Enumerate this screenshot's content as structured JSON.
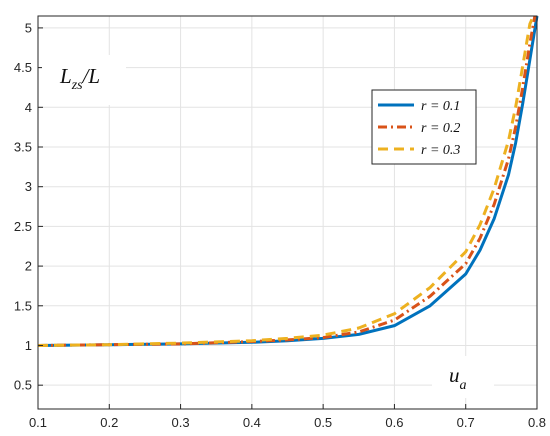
{
  "chart_data": {
    "type": "line",
    "ylabel": {
      "main": "L",
      "sub": "zs",
      "tail": "/L"
    },
    "xlabel": {
      "main": "u",
      "sub": "a"
    },
    "xlim": [
      0.1,
      0.8
    ],
    "ylim": [
      0.2,
      5.15
    ],
    "xticks": [
      "0.1",
      "0.2",
      "0.3",
      "0.4",
      "0.5",
      "0.6",
      "0.7",
      "0.8"
    ],
    "yticks": [
      "0.5",
      "1",
      "1.5",
      "2",
      "2.5",
      "3",
      "3.5",
      "4",
      "4.5",
      "5"
    ],
    "grid": true,
    "legend_position": "top-right",
    "series": [
      {
        "name": "r = 0.1",
        "color": "#0072BD",
        "style": "solid",
        "x": [
          0.1,
          0.2,
          0.3,
          0.4,
          0.45,
          0.5,
          0.55,
          0.6,
          0.65,
          0.7,
          0.72,
          0.74,
          0.76,
          0.77,
          0.78,
          0.79,
          0.8
        ],
        "y": [
          1.0,
          1.01,
          1.02,
          1.04,
          1.06,
          1.09,
          1.14,
          1.25,
          1.5,
          1.9,
          2.2,
          2.6,
          3.15,
          3.55,
          4.05,
          4.6,
          5.15
        ]
      },
      {
        "name": "r = 0.2",
        "color": "#D95319",
        "style": "dashdot",
        "x": [
          0.1,
          0.2,
          0.3,
          0.4,
          0.45,
          0.5,
          0.55,
          0.6,
          0.65,
          0.7,
          0.72,
          0.74,
          0.76,
          0.77,
          0.78,
          0.79,
          0.797
        ],
        "y": [
          1.0,
          1.01,
          1.02,
          1.05,
          1.07,
          1.1,
          1.17,
          1.32,
          1.62,
          2.03,
          2.35,
          2.78,
          3.35,
          3.75,
          4.25,
          4.8,
          5.15
        ]
      },
      {
        "name": "r = 0.3",
        "color": "#EDB120",
        "style": "dashed",
        "x": [
          0.1,
          0.2,
          0.3,
          0.4,
          0.45,
          0.5,
          0.55,
          0.6,
          0.65,
          0.7,
          0.72,
          0.74,
          0.76,
          0.77,
          0.78,
          0.79,
          0.795
        ],
        "y": [
          1.0,
          1.01,
          1.03,
          1.06,
          1.09,
          1.13,
          1.22,
          1.4,
          1.73,
          2.18,
          2.52,
          2.98,
          3.58,
          4.0,
          4.52,
          5.05,
          5.15
        ]
      }
    ]
  }
}
